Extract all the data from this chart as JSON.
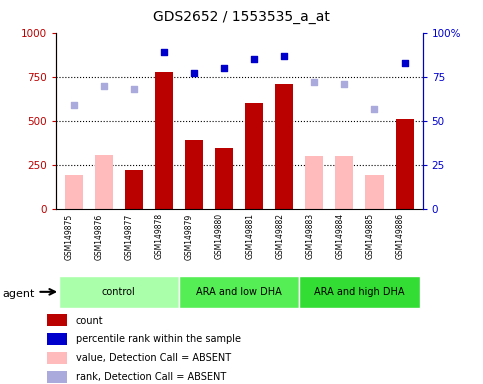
{
  "title": "GDS2652 / 1553535_a_at",
  "samples": [
    "GSM149875",
    "GSM149876",
    "GSM149877",
    "GSM149878",
    "GSM149879",
    "GSM149880",
    "GSM149881",
    "GSM149882",
    "GSM149883",
    "GSM149884",
    "GSM149885",
    "GSM149886"
  ],
  "count_values": [
    null,
    null,
    220,
    780,
    390,
    345,
    600,
    710,
    null,
    null,
    null,
    510
  ],
  "absent_pink_values": [
    195,
    310,
    null,
    null,
    null,
    null,
    null,
    null,
    300,
    300,
    195,
    null
  ],
  "percentile_rank": [
    null,
    null,
    null,
    89,
    77,
    80,
    85,
    87,
    null,
    null,
    null,
    83
  ],
  "percentile_rank_absent": [
    59,
    70,
    68,
    null,
    null,
    null,
    null,
    null,
    72,
    71,
    57,
    null
  ],
  "ylim_left": [
    0,
    1000
  ],
  "ylim_right": [
    0,
    100
  ],
  "yticks_left": [
    0,
    250,
    500,
    750,
    1000
  ],
  "yticks_right": [
    0,
    25,
    50,
    75,
    100
  ],
  "bar_color_red": "#bb0000",
  "bar_color_pink": "#ffbbbb",
  "scatter_color_blue": "#0000cc",
  "scatter_color_lightblue": "#aaaadd",
  "bg_plot": "#ffffff",
  "bg_sample": "#cccccc",
  "group_colors": [
    "#aaffaa",
    "#55ee55",
    "#33dd33"
  ],
  "group_labels": [
    "control",
    "ARA and low DHA",
    "ARA and high DHA"
  ],
  "group_ranges": [
    [
      0,
      3
    ],
    [
      4,
      7
    ],
    [
      8,
      11
    ]
  ],
  "legend_items": [
    {
      "color": "#bb0000",
      "label": "count"
    },
    {
      "color": "#0000cc",
      "label": "percentile rank within the sample"
    },
    {
      "color": "#ffbbbb",
      "label": "value, Detection Call = ABSENT"
    },
    {
      "color": "#aaaadd",
      "label": "rank, Detection Call = ABSENT"
    }
  ]
}
